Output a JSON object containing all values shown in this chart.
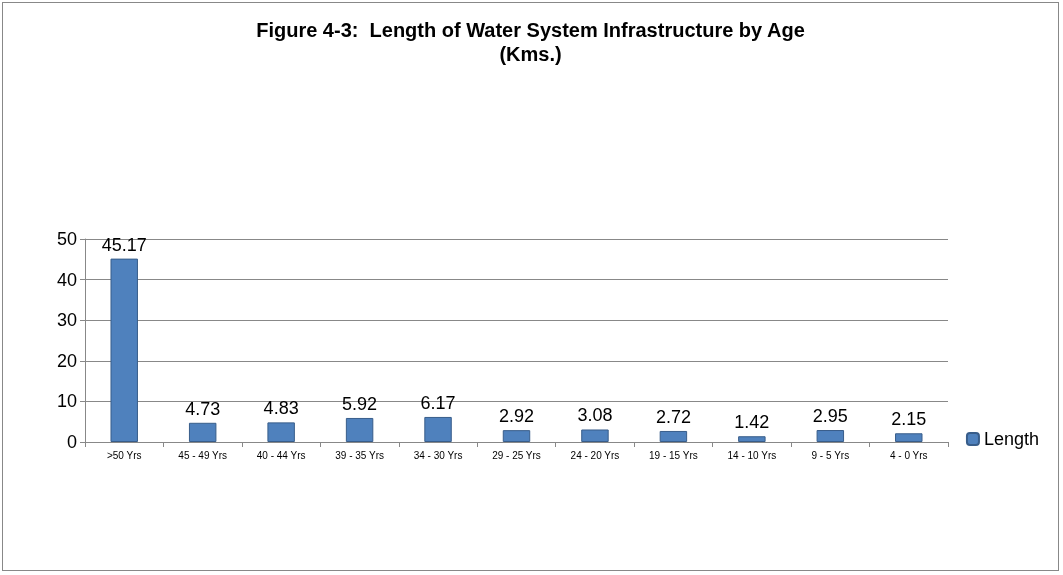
{
  "chart_data": {
    "type": "bar",
    "title": "Figure 4-3:  Length of Water System Infrastructure by Age\n(Kms.)",
    "categories": [
      ">50 Yrs",
      "45 - 49 Yrs",
      "40 - 44 Yrs",
      "39 - 35 Yrs",
      "34 - 30 Yrs",
      "29 - 25 Yrs",
      "24 - 20 Yrs",
      "19 - 15 Yrs",
      "14 - 10 Yrs",
      "9 - 5 Yrs",
      "4 - 0 Yrs"
    ],
    "series": [
      {
        "name": "Length",
        "color": "#4f81bd",
        "values": [
          45.17,
          4.73,
          4.83,
          5.92,
          6.17,
          2.92,
          3.08,
          2.72,
          1.42,
          2.95,
          2.15
        ]
      }
    ],
    "ylim": [
      0,
      50
    ],
    "yticks": [
      0,
      10,
      20,
      30,
      40,
      50
    ],
    "grid": "y",
    "data_labels": true,
    "legend": "right"
  }
}
